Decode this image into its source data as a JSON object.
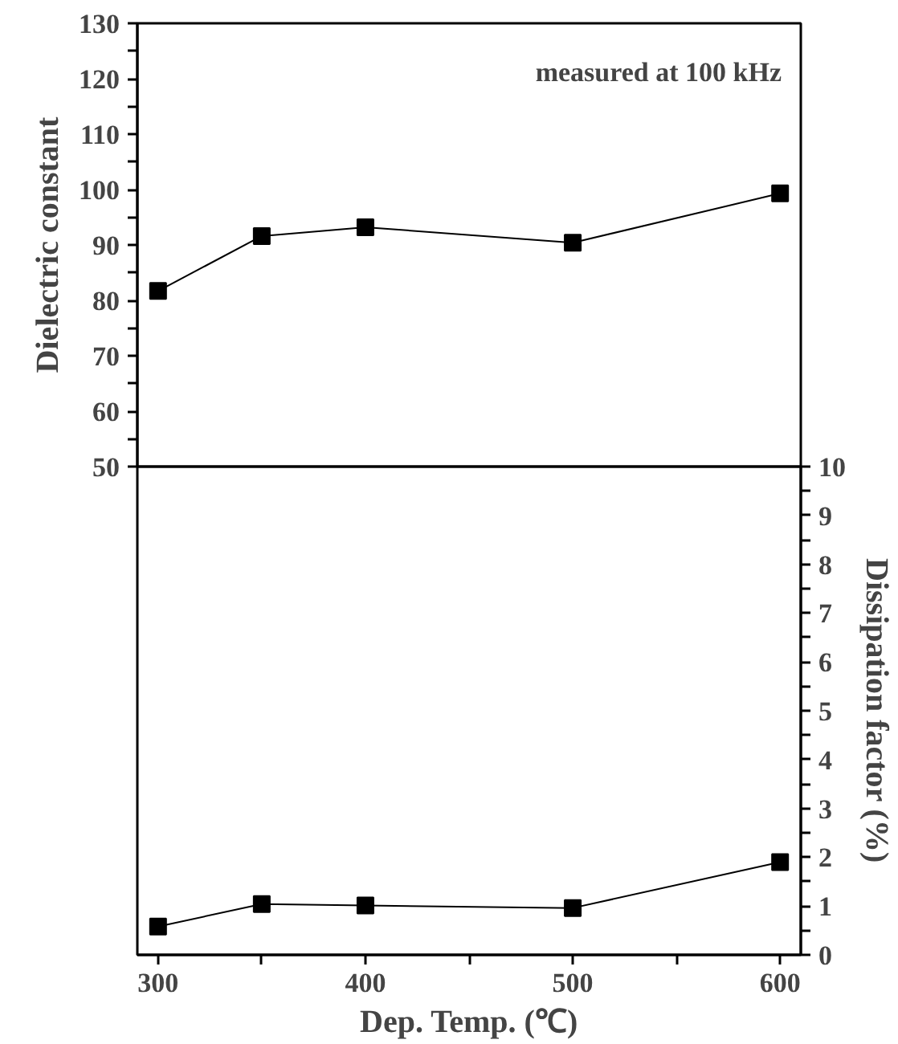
{
  "chart_data": [
    {
      "type": "line",
      "ylabel": "Dielectric constant",
      "annotations": [
        "measured at 100 kHz"
      ],
      "x": [
        300,
        350,
        400,
        500,
        600
      ],
      "series": [
        {
          "color": "#000000",
          "values": [
            81.7,
            91.6,
            93.2,
            90.4,
            99.3
          ]
        }
      ],
      "xlim": [
        290,
        610
      ],
      "ylim": [
        50,
        130
      ],
      "yticks": [
        50,
        {
          "value": 55,
          "label": null
        },
        60,
        {
          "value": 65,
          "label": null
        },
        70,
        {
          "value": 75,
          "label": null
        },
        80,
        {
          "value": 85,
          "label": null
        },
        90,
        {
          "value": 95,
          "label": null
        },
        100,
        {
          "value": 105,
          "label": null
        },
        110,
        {
          "value": 115,
          "label": null
        },
        120,
        {
          "value": 125,
          "label": null
        },
        130
      ],
      "tick_labels": "y",
      "marker": "square",
      "line_style": "solid"
    },
    {
      "type": "line",
      "xlabel": "Dep. Temp. (℃)",
      "y2label": "Dissipation factor (%)",
      "x": [
        300,
        350,
        400,
        500,
        600
      ],
      "series": [
        {
          "color": "#000000",
          "axis": "y2",
          "values": [
            0.58,
            1.04,
            1.01,
            0.96,
            1.9
          ]
        }
      ],
      "xlim": [
        290,
        610
      ],
      "xticks": [
        300,
        {
          "value": 350,
          "label": null
        },
        400,
        {
          "value": 450,
          "label": null
        },
        500,
        {
          "value": 550,
          "label": null
        },
        600
      ],
      "y2lim": [
        0,
        10
      ],
      "y2ticks": [
        0,
        {
          "value": 0.5,
          "label": null
        },
        1,
        {
          "value": 1.5,
          "label": null
        },
        2,
        {
          "value": 2.5,
          "label": null
        },
        3,
        {
          "value": 3.5,
          "label": null
        },
        4,
        {
          "value": 4.5,
          "label": null
        },
        5,
        {
          "value": 5.5,
          "label": null
        },
        6,
        {
          "value": 6.5,
          "label": null
        },
        7,
        {
          "value": 7.5,
          "label": null
        },
        8,
        {
          "value": 8.5,
          "label": null
        },
        9,
        {
          "value": 9.5,
          "label": null
        },
        10
      ],
      "marker": "square",
      "line_style": "solid"
    }
  ]
}
